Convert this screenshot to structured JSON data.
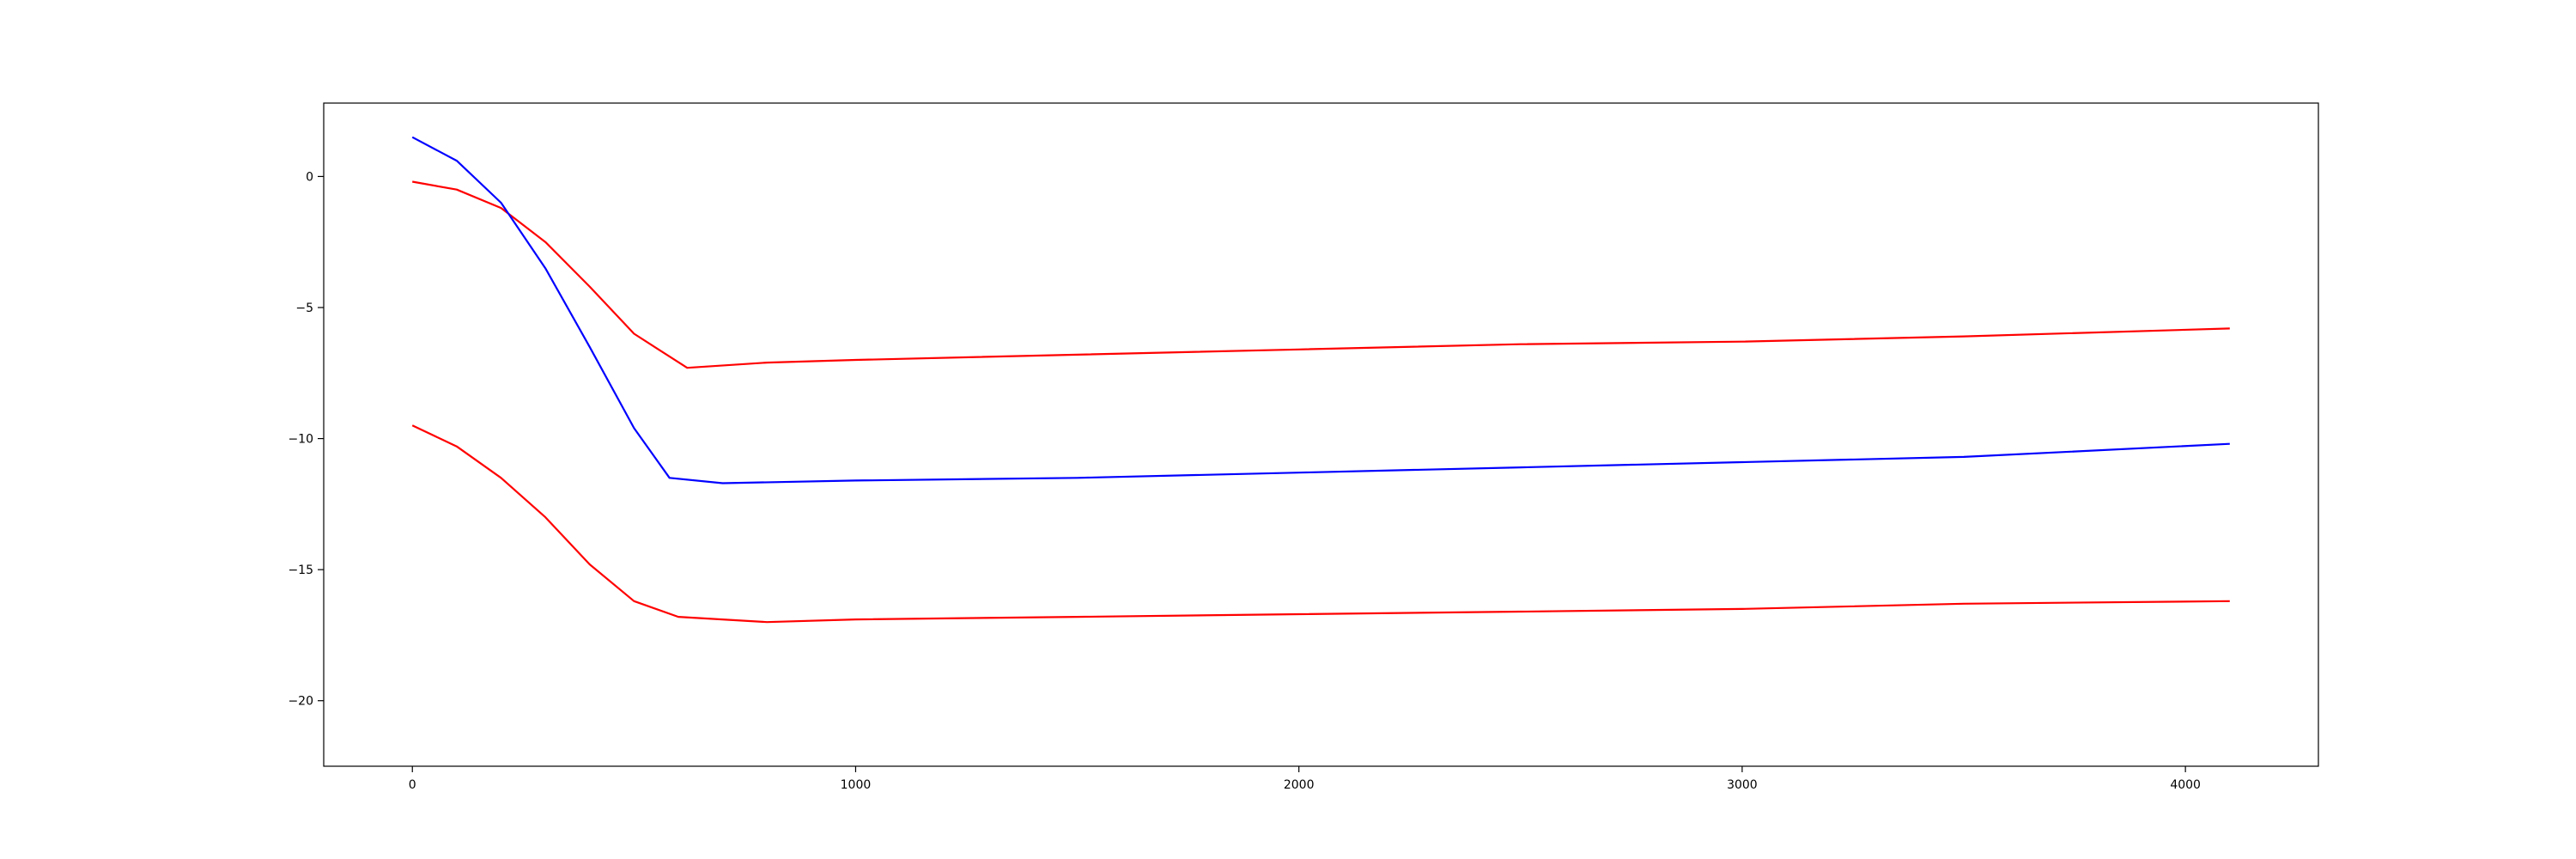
{
  "chart_data": {
    "type": "line",
    "title": "",
    "xlabel": "",
    "ylabel": "",
    "xlim": [
      -200,
      4300
    ],
    "ylim": [
      -22.5,
      2.8
    ],
    "grid": false,
    "legend": "none",
    "x_ticks": [
      {
        "value": 0,
        "label": "0"
      },
      {
        "value": 1000,
        "label": "1000"
      },
      {
        "value": 2000,
        "label": "2000"
      },
      {
        "value": 3000,
        "label": "3000"
      },
      {
        "value": 4000,
        "label": "4000"
      }
    ],
    "y_ticks": [
      {
        "value": 0,
        "label": "0"
      },
      {
        "value": -5,
        "label": "−5"
      },
      {
        "value": -10,
        "label": "−10"
      },
      {
        "value": -15,
        "label": "−15"
      },
      {
        "value": -20,
        "label": "−20"
      }
    ],
    "series": [
      {
        "color": "#ff0000",
        "points": [
          [
            0,
            -0.2
          ],
          [
            100,
            -0.5
          ],
          [
            200,
            -1.2
          ],
          [
            300,
            -2.5
          ],
          [
            400,
            -4.2
          ],
          [
            500,
            -6.0
          ],
          [
            620,
            -7.3
          ],
          [
            800,
            -7.1
          ],
          [
            1000,
            -7.0
          ],
          [
            1500,
            -6.8
          ],
          [
            2000,
            -6.6
          ],
          [
            2500,
            -6.4
          ],
          [
            3000,
            -6.3
          ],
          [
            3500,
            -6.1
          ],
          [
            4100,
            -5.8
          ]
        ]
      },
      {
        "color": "#0000ff",
        "points": [
          [
            0,
            1.5
          ],
          [
            100,
            0.6
          ],
          [
            200,
            -1.0
          ],
          [
            300,
            -3.5
          ],
          [
            400,
            -6.5
          ],
          [
            500,
            -9.6
          ],
          [
            580,
            -11.5
          ],
          [
            700,
            -11.7
          ],
          [
            1000,
            -11.6
          ],
          [
            1500,
            -11.5
          ],
          [
            2000,
            -11.3
          ],
          [
            2500,
            -11.1
          ],
          [
            3000,
            -10.9
          ],
          [
            3500,
            -10.7
          ],
          [
            4100,
            -10.2
          ]
        ]
      },
      {
        "color": "#ff0000",
        "points": [
          [
            0,
            -9.5
          ],
          [
            100,
            -10.3
          ],
          [
            200,
            -11.5
          ],
          [
            300,
            -13.0
          ],
          [
            400,
            -14.8
          ],
          [
            500,
            -16.2
          ],
          [
            600,
            -16.8
          ],
          [
            800,
            -17.0
          ],
          [
            1000,
            -16.9
          ],
          [
            1500,
            -16.8
          ],
          [
            2000,
            -16.7
          ],
          [
            2500,
            -16.6
          ],
          [
            3000,
            -16.5
          ],
          [
            3500,
            -16.3
          ],
          [
            4100,
            -16.2
          ]
        ]
      }
    ]
  }
}
